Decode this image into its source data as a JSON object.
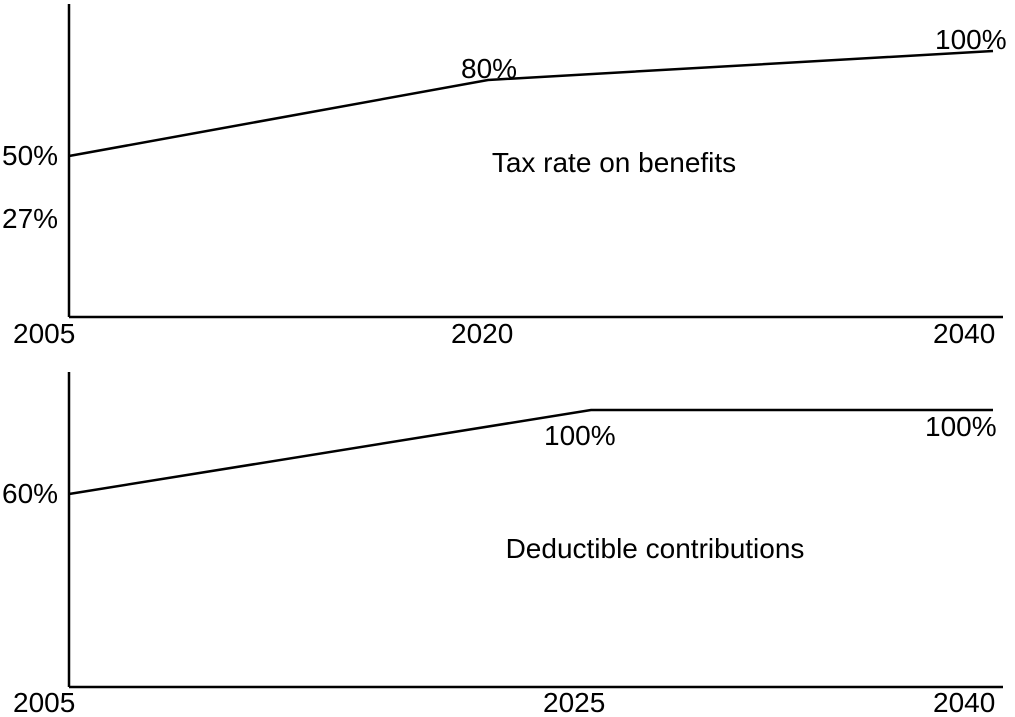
{
  "chart_data": [
    {
      "type": "line",
      "title": "Tax rate on benefits",
      "x": [
        2005,
        2020,
        2040
      ],
      "x_ticks": [
        "2005",
        "2020",
        "2040"
      ],
      "series": [
        {
          "values": [
            50,
            80,
            100
          ],
          "labels": [
            "50%",
            "80%",
            "100%"
          ]
        }
      ],
      "extra_labels": [
        "27%"
      ],
      "grid": false
    },
    {
      "type": "line",
      "title": "Deductible contributions",
      "x": [
        2005,
        2025,
        2040
      ],
      "x_ticks": [
        "2005",
        "2025",
        "2040"
      ],
      "series": [
        {
          "values": [
            60,
            100,
            100
          ],
          "labels": [
            "60%",
            "100%",
            "100%"
          ]
        }
      ],
      "grid": false
    }
  ]
}
